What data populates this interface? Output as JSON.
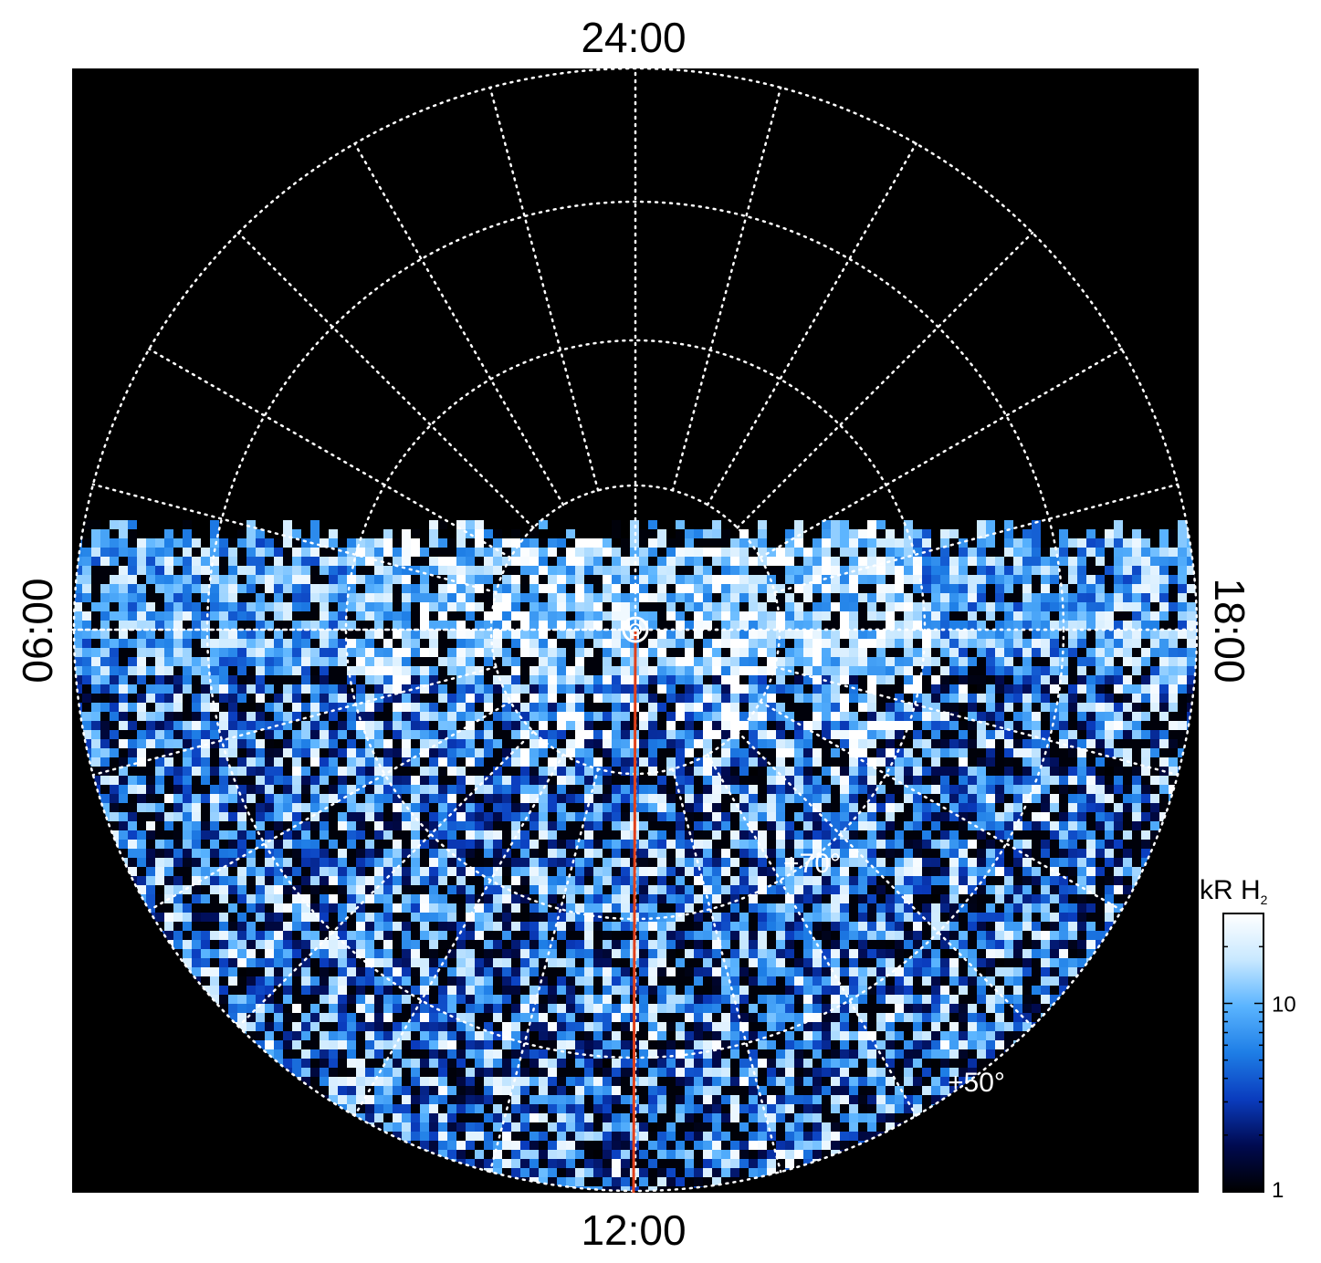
{
  "chart_data": {
    "type": "heatmap",
    "projection": "polar",
    "local_time_labels": {
      "top": "24:00",
      "bottom": "12:00",
      "left": "06:00",
      "right": "18:00"
    },
    "latitude_labels": [
      "+70°",
      "+50°"
    ],
    "colorbar": {
      "title": "kR H",
      "title_subscript": "2",
      "scale": "log",
      "range": [
        1,
        30
      ],
      "ticks": [
        {
          "value": 1,
          "label": "1"
        },
        {
          "value": 10,
          "label": "10"
        }
      ],
      "colors": [
        "#000000",
        "#000a50",
        "#0a3cbe",
        "#1e7ee6",
        "#5ab4ff",
        "#c8e8ff",
        "#ffffff"
      ]
    },
    "background_color": "#000000",
    "grid": true,
    "grid_color": "#ffffff",
    "meridian_marker_color": "#e0401a",
    "pole_marker_color": "#ffffff"
  }
}
